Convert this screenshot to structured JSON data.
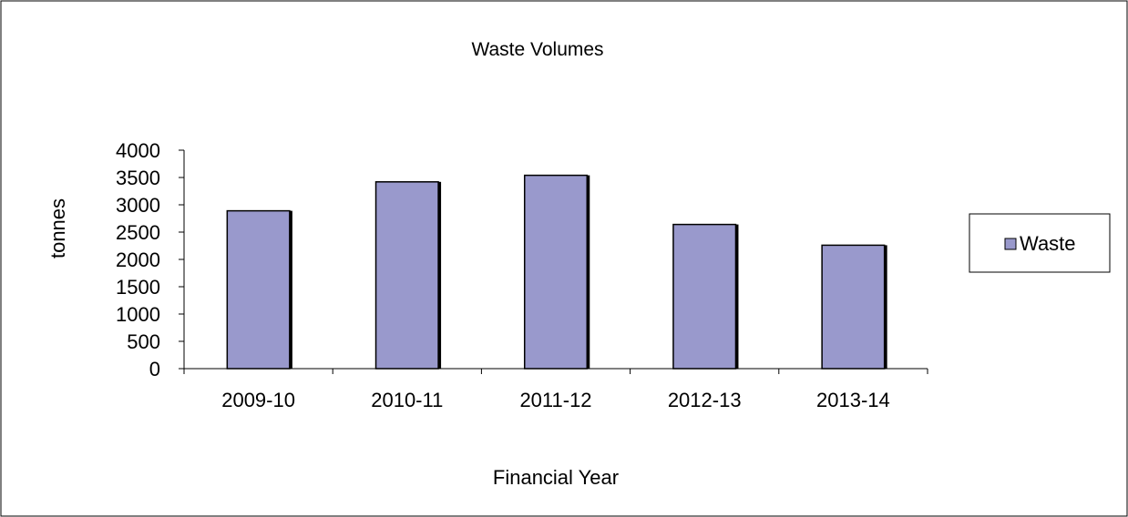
{
  "chart_data": {
    "type": "bar",
    "title": "Waste Volumes",
    "xlabel": "Financial Year",
    "ylabel": "tonnes",
    "categories": [
      "2009-10",
      "2010-11",
      "2011-12",
      "2012-13",
      "2013-14"
    ],
    "series": [
      {
        "name": "Waste",
        "values": [
          2890,
          3420,
          3540,
          2640,
          2260
        ],
        "color": "#9999cc"
      }
    ],
    "ylim": [
      0,
      4000
    ],
    "yticks": [
      "0",
      "500",
      "1000",
      "1500",
      "2000",
      "2500",
      "3000",
      "3500",
      "4000"
    ],
    "grid": false,
    "legend_position": "right"
  }
}
